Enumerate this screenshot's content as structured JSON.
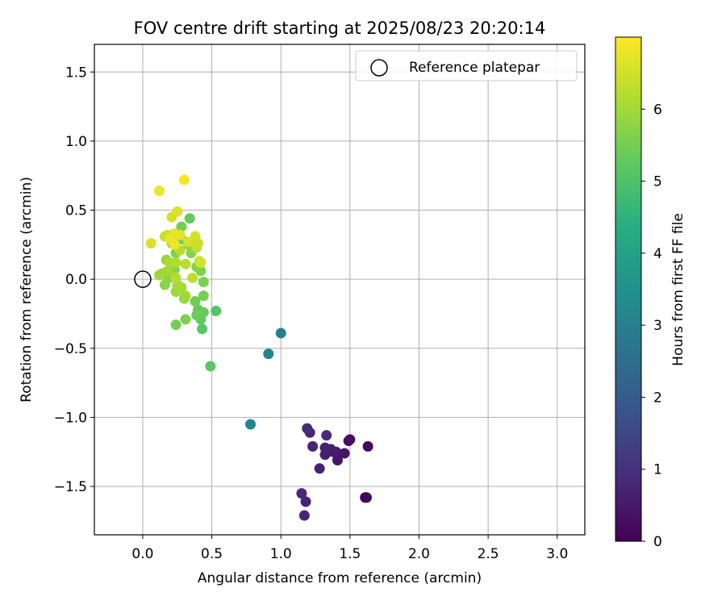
{
  "chart_data": {
    "type": "scatter",
    "title": "FOV centre drift starting at 2025/08/23 20:20:14",
    "xlabel": "Angular distance from reference (arcmin)",
    "ylabel": "Rotation from reference (arcmin)",
    "xlim": [
      -0.35,
      3.2
    ],
    "ylim": [
      -1.85,
      1.7
    ],
    "xticks": [
      0.0,
      0.5,
      1.0,
      1.5,
      2.0,
      2.5,
      3.0
    ],
    "xtick_labels": [
      "0.0",
      "0.5",
      "1.0",
      "1.5",
      "2.0",
      "2.5",
      "3.0"
    ],
    "yticks": [
      -1.5,
      -1.0,
      -0.5,
      0.0,
      0.5,
      1.0,
      1.5
    ],
    "ytick_labels": [
      "−1.5",
      "−1.0",
      "−0.5",
      "0.0",
      "0.5",
      "1.0",
      "1.5"
    ],
    "grid": true,
    "legend": {
      "position": "top-right",
      "entries": [
        "Reference platepar"
      ]
    },
    "reference_point": {
      "label": "Reference platepar",
      "x": 0.0,
      "y": 0.0
    },
    "colorbar": {
      "label": "Hours from first FF file",
      "range": [
        0,
        7
      ],
      "ticks": [
        0,
        1,
        2,
        3,
        4,
        5,
        6
      ],
      "tick_labels": [
        "0",
        "1",
        "2",
        "3",
        "4",
        "5",
        "6"
      ],
      "colormap": "viridis"
    },
    "points": [
      [
        1.62,
        -1.58,
        0.05
      ],
      [
        1.61,
        -1.58,
        0.1
      ],
      [
        1.63,
        -1.21,
        0.15
      ],
      [
        1.5,
        -1.16,
        0.25
      ],
      [
        1.49,
        -1.17,
        0.3
      ],
      [
        1.46,
        -1.26,
        0.4
      ],
      [
        1.41,
        -1.31,
        0.45
      ],
      [
        1.4,
        -1.25,
        0.5
      ],
      [
        1.36,
        -1.23,
        0.55
      ],
      [
        1.32,
        -1.27,
        0.6
      ],
      [
        1.32,
        -1.22,
        0.65
      ],
      [
        1.28,
        -1.37,
        0.7
      ],
      [
        1.23,
        -1.21,
        0.75
      ],
      [
        1.21,
        -1.11,
        0.8
      ],
      [
        1.19,
        -1.08,
        0.85
      ],
      [
        1.18,
        -1.61,
        0.7
      ],
      [
        1.17,
        -1.71,
        0.75
      ],
      [
        1.15,
        -1.55,
        0.8
      ],
      [
        1.33,
        -1.13,
        0.9
      ],
      [
        1.38,
        -1.25,
        0.6
      ],
      [
        1.0,
        -0.39,
        3.0
      ],
      [
        0.91,
        -0.54,
        3.1
      ],
      [
        0.78,
        -1.05,
        3.2
      ],
      [
        0.49,
        -0.63,
        5.2
      ],
      [
        0.53,
        -0.23,
        5.1
      ],
      [
        0.43,
        -0.36,
        5.15
      ],
      [
        0.42,
        -0.29,
        5.25
      ],
      [
        0.44,
        -0.24,
        5.3
      ],
      [
        0.4,
        -0.22,
        5.35
      ],
      [
        0.39,
        -0.26,
        5.4
      ],
      [
        0.38,
        -0.16,
        5.45
      ],
      [
        0.44,
        -0.12,
        5.5
      ],
      [
        0.44,
        -0.02,
        5.55
      ],
      [
        0.42,
        0.06,
        5.6
      ],
      [
        0.39,
        0.09,
        5.65
      ],
      [
        0.35,
        0.19,
        5.7
      ],
      [
        0.33,
        0.25,
        5.75
      ],
      [
        0.34,
        0.44,
        5.3
      ],
      [
        0.28,
        0.29,
        5.35
      ],
      [
        0.28,
        0.38,
        5.5
      ],
      [
        0.24,
        0.19,
        5.6
      ],
      [
        0.23,
        0.07,
        5.65
      ],
      [
        0.19,
        0.01,
        5.7
      ],
      [
        0.16,
        -0.04,
        5.75
      ],
      [
        0.14,
        0.04,
        5.8
      ],
      [
        0.17,
        0.14,
        5.85
      ],
      [
        0.21,
        0.26,
        5.9
      ],
      [
        0.24,
        -0.09,
        5.95
      ],
      [
        0.25,
        -0.04,
        6.0
      ],
      [
        0.28,
        -0.06,
        6.05
      ],
      [
        0.31,
        -0.12,
        6.1
      ],
      [
        0.24,
        -0.33,
        5.5
      ],
      [
        0.31,
        -0.29,
        5.6
      ],
      [
        0.3,
        -0.14,
        5.9
      ],
      [
        0.12,
        0.03,
        5.95
      ],
      [
        0.18,
        0.06,
        6.0
      ],
      [
        0.2,
        0.12,
        6.1
      ],
      [
        0.24,
        0.12,
        6.15
      ],
      [
        0.27,
        0.21,
        6.2
      ],
      [
        0.31,
        0.11,
        6.25
      ],
      [
        0.36,
        0.01,
        6.3
      ],
      [
        0.39,
        0.23,
        6.35
      ],
      [
        0.41,
        0.13,
        6.4
      ],
      [
        0.4,
        0.26,
        6.45
      ],
      [
        0.38,
        0.31,
        6.5
      ],
      [
        0.42,
        0.12,
        6.55
      ],
      [
        0.33,
        0.27,
        6.6
      ],
      [
        0.24,
        0.01,
        6.2
      ],
      [
        0.22,
        0.28,
        6.3
      ],
      [
        0.16,
        0.31,
        6.4
      ],
      [
        0.18,
        0.32,
        6.45
      ],
      [
        0.21,
        0.45,
        6.55
      ],
      [
        0.25,
        0.49,
        6.65
      ],
      [
        0.27,
        0.32,
        6.7
      ],
      [
        0.23,
        0.33,
        6.75
      ],
      [
        0.2,
        0.29,
        6.8
      ],
      [
        0.23,
        0.25,
        6.85
      ],
      [
        0.06,
        0.26,
        6.6
      ],
      [
        0.12,
        0.64,
        6.85
      ],
      [
        0.3,
        0.72,
        6.95
      ]
    ]
  }
}
